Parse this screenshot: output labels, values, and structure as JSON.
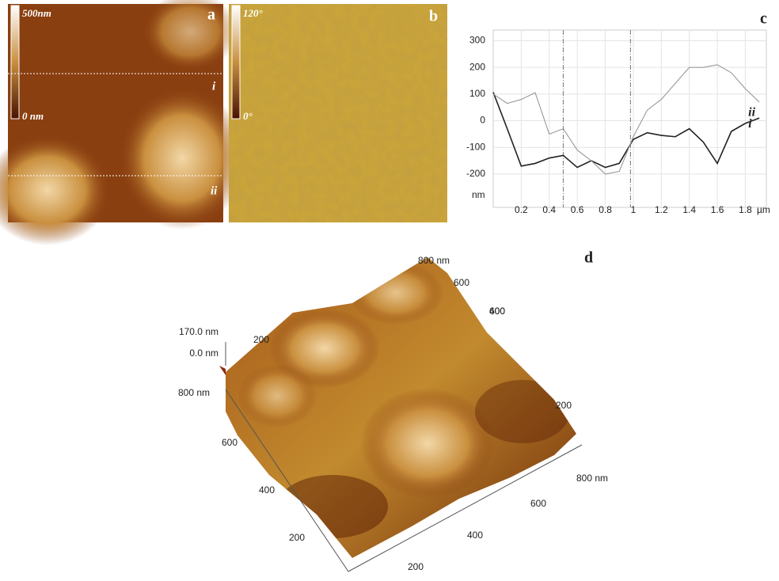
{
  "panels": {
    "a": {
      "letter": "a",
      "scale_max": "500nm",
      "scale_min": "0 nm",
      "lines": [
        "i",
        "ii"
      ]
    },
    "b": {
      "letter": "b",
      "scale_max": "120°",
      "scale_min": "0°"
    },
    "d": {
      "letter": "d",
      "z_labels": [
        "170.0 nm",
        "0.0 nm"
      ],
      "axis_labels": [
        "800 nm",
        "600",
        "400",
        "200",
        "800 nm",
        "600",
        "400",
        "200",
        "200",
        "400",
        "600",
        "800 nm",
        "600",
        "200"
      ]
    }
  },
  "chart_data": {
    "type": "line",
    "title": "c",
    "y_unit": "nm",
    "x_unit": "µm",
    "x": [
      0,
      0.1,
      0.2,
      0.3,
      0.4,
      0.5,
      0.6,
      0.7,
      0.8,
      0.9,
      1.0,
      1.1,
      1.2,
      1.3,
      1.4,
      1.5,
      1.6,
      1.7,
      1.8,
      1.9
    ],
    "series": [
      {
        "name": "i",
        "color": "#222222",
        "values": [
          107,
          -30,
          -170,
          -160,
          -140,
          -130,
          -175,
          -150,
          -175,
          -160,
          -70,
          -45,
          -55,
          -60,
          -30,
          -80,
          -160,
          -40,
          -10,
          10
        ]
      },
      {
        "name": "ii",
        "color": "#999999",
        "values": [
          100,
          65,
          80,
          105,
          -50,
          -30,
          -110,
          -150,
          -200,
          -190,
          -60,
          40,
          80,
          140,
          200,
          200,
          210,
          180,
          120,
          70
        ]
      }
    ],
    "xlim": [
      0,
      1.95
    ],
    "ylim": [
      -325,
      340
    ],
    "xticks": [
      0.2,
      0.4,
      0.6,
      0.8,
      1,
      1.2,
      1.4,
      1.6,
      1.8
    ],
    "yticks": [
      300,
      200,
      100,
      0,
      -100,
      -200
    ],
    "markers": [
      0.5,
      0.98
    ],
    "grid": true
  }
}
